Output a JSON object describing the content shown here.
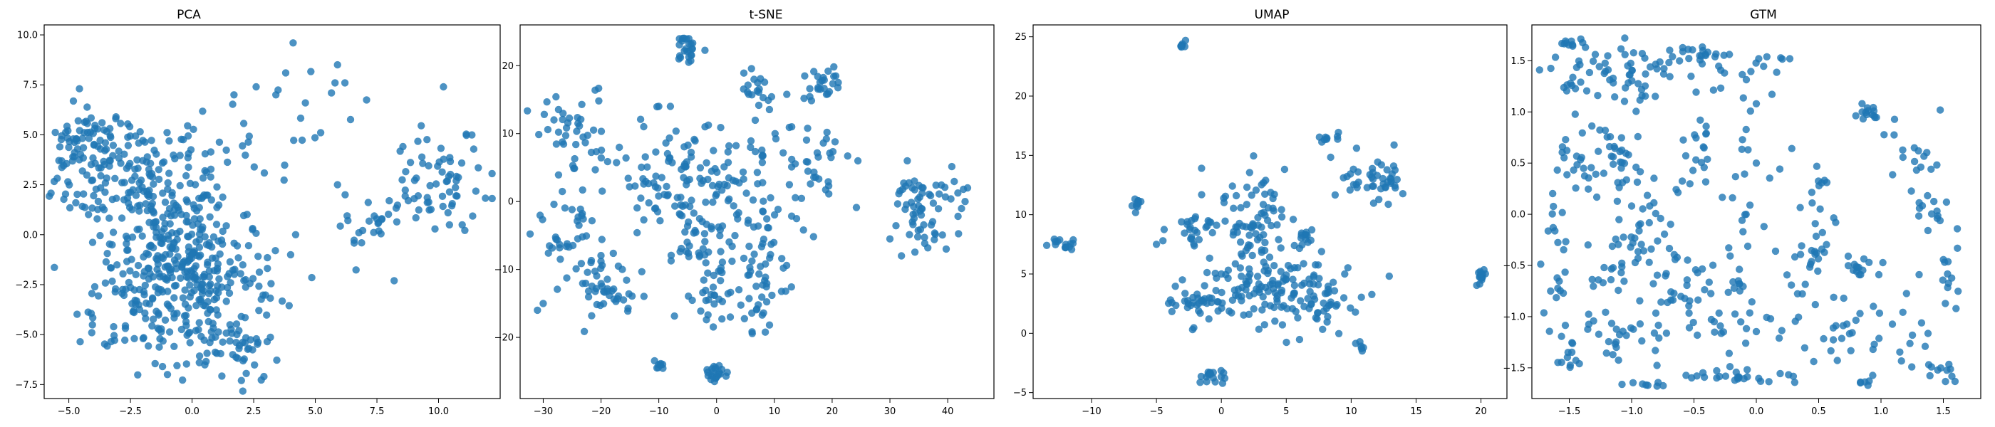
{
  "chart_data": [
    {
      "type": "scatter",
      "title": "PCA",
      "xlim": [
        -6.0,
        12.5
      ],
      "ylim": [
        -8.2,
        10.5
      ],
      "xticks": [
        -5.0,
        -2.5,
        0.0,
        2.5,
        5.0,
        7.5,
        10.0
      ],
      "xtick_labels": [
        "−5.0",
        "−2.5",
        "0.0",
        "2.5",
        "5.0",
        "7.5",
        "10.0"
      ],
      "yticks": [
        -7.5,
        -5.0,
        -2.5,
        0.0,
        2.5,
        5.0,
        7.5,
        10.0
      ],
      "ytick_labels": [
        "−7.5",
        "−5.0",
        "−2.5",
        "0.0",
        "2.5",
        "5.0",
        "7.5",
        "10.0"
      ],
      "color": "#1f77b4",
      "clusters": [
        {
          "x": -3.0,
          "y": 3.0,
          "sx": 1.4,
          "sy": 1.5,
          "n": 160
        },
        {
          "x": -4.5,
          "y": 4.8,
          "sx": 0.6,
          "sy": 0.8,
          "n": 40
        },
        {
          "x": -0.5,
          "y": -1.0,
          "sx": 1.2,
          "sy": 1.6,
          "n": 200
        },
        {
          "x": -1.5,
          "y": -3.5,
          "sx": 1.5,
          "sy": 1.5,
          "n": 120
        },
        {
          "x": 0.5,
          "y": 2.5,
          "sx": 1.5,
          "sy": 1.8,
          "n": 60
        },
        {
          "x": 1.5,
          "y": -5.5,
          "sx": 1.0,
          "sy": 0.9,
          "n": 60
        },
        {
          "x": 2.0,
          "y": -2.5,
          "sx": 1.0,
          "sy": 1.2,
          "n": 30
        },
        {
          "x": 10.0,
          "y": 2.5,
          "sx": 1.2,
          "sy": 1.2,
          "n": 70
        },
        {
          "x": 7.2,
          "y": 0.0,
          "sx": 0.8,
          "sy": 0.8,
          "n": 22
        },
        {
          "x": 4.5,
          "y": 5.5,
          "sx": 1.5,
          "sy": 1.5,
          "n": 14
        }
      ],
      "points": [
        [
          4.1,
          9.6
        ],
        [
          3.8,
          8.1
        ],
        [
          5.9,
          8.5
        ],
        [
          5.8,
          7.6
        ],
        [
          6.2,
          7.6
        ],
        [
          2.6,
          7.4
        ],
        [
          3.4,
          7.0
        ],
        [
          10.2,
          7.4
        ],
        [
          1.7,
          7.0
        ],
        [
          -1.2,
          -6.6
        ],
        [
          -1.0,
          -7.0
        ],
        [
          2.0,
          -7.3
        ],
        [
          8.2,
          -2.3
        ],
        [
          4.0,
          -1.0
        ],
        [
          4.2,
          0.0
        ],
        [
          5.9,
          2.5
        ]
      ]
    },
    {
      "type": "scatter",
      "title": "t-SNE",
      "xlim": [
        -34,
        48
      ],
      "ylim": [
        -29,
        26
      ],
      "xticks": [
        -30,
        -20,
        -10,
        0,
        10,
        20,
        30,
        40
      ],
      "xtick_labels": [
        "−30",
        "−20",
        "−10",
        "0",
        "10",
        "20",
        "30",
        "40"
      ],
      "yticks": [
        -20,
        -10,
        0,
        10,
        20
      ],
      "ytick_labels": [
        "−20",
        "−10",
        "0",
        "10",
        "20"
      ],
      "color": "#1f77b4",
      "clusters": [
        {
          "x": -5,
          "y": 22.5,
          "sx": 1.0,
          "sy": 1.2,
          "n": 25
        },
        {
          "x": 0,
          "y": -25.5,
          "sx": 1.0,
          "sy": 0.7,
          "n": 22
        },
        {
          "x": -24,
          "y": 10,
          "sx": 4.0,
          "sy": 3.0,
          "n": 45
        },
        {
          "x": -25,
          "y": -4,
          "sx": 3.0,
          "sy": 4.0,
          "n": 40
        },
        {
          "x": -20,
          "y": -13,
          "sx": 3.5,
          "sy": 3.0,
          "n": 45
        },
        {
          "x": -8,
          "y": 4,
          "sx": 5.0,
          "sy": 3.5,
          "n": 70
        },
        {
          "x": -2,
          "y": -6,
          "sx": 4.0,
          "sy": 3.0,
          "n": 50
        },
        {
          "x": 5,
          "y": 2,
          "sx": 6.0,
          "sy": 5.0,
          "n": 80
        },
        {
          "x": -1,
          "y": -15,
          "sx": 3.0,
          "sy": 2.0,
          "n": 25
        },
        {
          "x": 8,
          "y": -10,
          "sx": 3.0,
          "sy": 3.0,
          "n": 30
        },
        {
          "x": 18,
          "y": 17.5,
          "sx": 1.5,
          "sy": 1.5,
          "n": 25
        },
        {
          "x": 18,
          "y": 5,
          "sx": 2.5,
          "sy": 3.0,
          "n": 25
        },
        {
          "x": 36,
          "y": 1,
          "sx": 3.0,
          "sy": 2.0,
          "n": 45
        },
        {
          "x": 37,
          "y": -4,
          "sx": 2.0,
          "sy": 1.5,
          "n": 20
        },
        {
          "x": 7,
          "y": 16,
          "sx": 2.0,
          "sy": 2.0,
          "n": 20
        },
        {
          "x": -10,
          "y": -24,
          "sx": 0.5,
          "sy": 0.5,
          "n": 8
        },
        {
          "x": 7,
          "y": -16,
          "sx": 2.0,
          "sy": 1.5,
          "n": 12
        }
      ],
      "points": [
        [
          43,
          0
        ],
        [
          30,
          -5.5
        ],
        [
          32,
          -8
        ],
        [
          33,
          6
        ],
        [
          -31,
          -16
        ],
        [
          -30,
          -15
        ],
        [
          -8,
          14
        ],
        [
          -10,
          14
        ],
        [
          13,
          11
        ],
        [
          -2,
          11
        ]
      ]
    },
    {
      "type": "scatter",
      "title": "UMAP",
      "xlim": [
        -14.5,
        22
      ],
      "ylim": [
        -5.5,
        26
      ],
      "xticks": [
        -10,
        -5,
        0,
        5,
        10,
        15,
        20
      ],
      "xtick_labels": [
        "−10",
        "−5",
        "0",
        "5",
        "10",
        "15",
        "20"
      ],
      "yticks": [
        -5,
        0,
        5,
        10,
        15,
        20,
        25
      ],
      "ytick_labels": [
        "−5",
        "0",
        "5",
        "10",
        "15",
        "20",
        "25"
      ],
      "color": "#1f77b4",
      "clusters": [
        {
          "x": -3,
          "y": 24.2,
          "sx": 0.15,
          "sy": 0.2,
          "n": 8
        },
        {
          "x": -12,
          "y": 7.5,
          "sx": 0.5,
          "sy": 0.3,
          "n": 15
        },
        {
          "x": -6.5,
          "y": 11,
          "sx": 0.2,
          "sy": 0.3,
          "n": 10
        },
        {
          "x": -0.5,
          "y": -3.5,
          "sx": 0.7,
          "sy": 0.3,
          "n": 18
        },
        {
          "x": 20,
          "y": 4.8,
          "sx": 0.3,
          "sy": 0.5,
          "n": 15
        },
        {
          "x": 12.5,
          "y": 13,
          "sx": 0.8,
          "sy": 1.0,
          "n": 35
        },
        {
          "x": 10.5,
          "y": 12.5,
          "sx": 0.6,
          "sy": 0.6,
          "n": 10
        },
        {
          "x": 8.3,
          "y": 16.2,
          "sx": 0.5,
          "sy": 0.5,
          "n": 10
        },
        {
          "x": 3.5,
          "y": 4,
          "sx": 3.0,
          "sy": 2.0,
          "n": 150
        },
        {
          "x": 2.5,
          "y": 10,
          "sx": 1.5,
          "sy": 2.0,
          "n": 60
        },
        {
          "x": -2,
          "y": 2.5,
          "sx": 1.0,
          "sy": 0.5,
          "n": 25
        },
        {
          "x": -2,
          "y": 9,
          "sx": 1.0,
          "sy": 1.0,
          "n": 25
        },
        {
          "x": 8,
          "y": 2.5,
          "sx": 1.0,
          "sy": 1.0,
          "n": 25
        },
        {
          "x": 10.8,
          "y": -1,
          "sx": 0.2,
          "sy": 0.2,
          "n": 6
        },
        {
          "x": 6.5,
          "y": 8,
          "sx": 0.5,
          "sy": 0.5,
          "n": 10
        }
      ],
      "points": [
        [
          -4.5,
          7.8
        ],
        [
          -5,
          7.5
        ],
        [
          0,
          5
        ],
        [
          -3,
          4.5
        ],
        [
          9.5,
          5
        ]
      ]
    },
    {
      "type": "scatter",
      "title": "GTM",
      "xlim": [
        -1.8,
        1.8
      ],
      "ylim": [
        -1.8,
        1.85
      ],
      "xticks": [
        -1.5,
        -1.0,
        -0.5,
        0.0,
        0.5,
        1.0,
        1.5
      ],
      "xtick_labels": [
        "−1.5",
        "−1.0",
        "−0.5",
        "0.0",
        "0.5",
        "1.0",
        "1.5"
      ],
      "yticks": [
        -1.5,
        -1.0,
        -0.5,
        0.0,
        0.5,
        1.0,
        1.5
      ],
      "ytick_labels": [
        "−1.5",
        "−1.0",
        "−0.5",
        "0.0",
        "0.5",
        "1.0",
        "1.5"
      ],
      "color": "#1f77b4",
      "clusters": [
        {
          "x": -1.5,
          "y": 1.68,
          "sx": 0.05,
          "sy": 0.02,
          "n": 10
        },
        {
          "x": -1.55,
          "y": 1.25,
          "sx": 0.04,
          "sy": 0.03,
          "n": 6
        },
        {
          "x": -1.3,
          "y": 1.4,
          "sx": 0.2,
          "sy": 0.1,
          "n": 25
        },
        {
          "x": -0.8,
          "y": 1.5,
          "sx": 0.2,
          "sy": 0.1,
          "n": 25
        },
        {
          "x": -0.4,
          "y": 1.55,
          "sx": 0.1,
          "sy": 0.05,
          "n": 15
        },
        {
          "x": -0.2,
          "y": 1.3,
          "sx": 0.15,
          "sy": 0.1,
          "n": 10
        },
        {
          "x": -1.0,
          "y": 1.2,
          "sx": 0.15,
          "sy": 0.1,
          "n": 15
        },
        {
          "x": 0.15,
          "y": 1.5,
          "sx": 0.08,
          "sy": 0.05,
          "n": 8
        },
        {
          "x": -1.2,
          "y": 0.6,
          "sx": 0.12,
          "sy": 0.2,
          "n": 30
        },
        {
          "x": -1.5,
          "y": 0.5,
          "sx": 0.1,
          "sy": 0.3,
          "n": 15
        },
        {
          "x": -0.85,
          "y": 0.2,
          "sx": 0.2,
          "sy": 0.15,
          "n": 20
        },
        {
          "x": -0.45,
          "y": 0.55,
          "sx": 0.15,
          "sy": 0.2,
          "n": 20
        },
        {
          "x": -0.1,
          "y": 0.3,
          "sx": 0.1,
          "sy": 0.3,
          "n": 12
        },
        {
          "x": 0.35,
          "y": 0.2,
          "sx": 0.15,
          "sy": 0.3,
          "n": 15
        },
        {
          "x": 0.9,
          "y": 0.95,
          "sx": 0.07,
          "sy": 0.08,
          "n": 15
        },
        {
          "x": 1.3,
          "y": 0.6,
          "sx": 0.12,
          "sy": 0.2,
          "n": 15
        },
        {
          "x": 1.4,
          "y": 0.0,
          "sx": 0.1,
          "sy": 0.15,
          "n": 15
        },
        {
          "x": -1.6,
          "y": -0.6,
          "sx": 0.05,
          "sy": 0.4,
          "n": 25
        },
        {
          "x": -1.2,
          "y": -0.6,
          "sx": 0.1,
          "sy": 0.1,
          "n": 12
        },
        {
          "x": -0.9,
          "y": -0.3,
          "sx": 0.15,
          "sy": 0.15,
          "n": 25
        },
        {
          "x": -0.4,
          "y": -0.6,
          "sx": 0.2,
          "sy": 0.15,
          "n": 25
        },
        {
          "x": 0.3,
          "y": -0.4,
          "sx": 0.2,
          "sy": 0.15,
          "n": 25
        },
        {
          "x": 0.8,
          "y": -0.5,
          "sx": 0.1,
          "sy": 0.05,
          "n": 15
        },
        {
          "x": 1.5,
          "y": -0.6,
          "sx": 0.1,
          "sy": 0.1,
          "n": 12
        },
        {
          "x": -1.2,
          "y": -1.1,
          "sx": 0.2,
          "sy": 0.15,
          "n": 20
        },
        {
          "x": -0.7,
          "y": -1.1,
          "sx": 0.2,
          "sy": 0.2,
          "n": 20
        },
        {
          "x": -0.2,
          "y": -1.0,
          "sx": 0.2,
          "sy": 0.15,
          "n": 25
        },
        {
          "x": 0.6,
          "y": -1.1,
          "sx": 0.25,
          "sy": 0.2,
          "n": 30
        },
        {
          "x": -0.1,
          "y": -1.58,
          "sx": 0.2,
          "sy": 0.03,
          "n": 25
        },
        {
          "x": -0.85,
          "y": -1.65,
          "sx": 0.08,
          "sy": 0.02,
          "n": 8
        },
        {
          "x": 1.3,
          "y": -1.3,
          "sx": 0.2,
          "sy": 0.15,
          "n": 15
        },
        {
          "x": 1.5,
          "y": -1.55,
          "sx": 0.05,
          "sy": 0.04,
          "n": 6
        },
        {
          "x": 0.92,
          "y": -1.6,
          "sx": 0.05,
          "sy": 0.04,
          "n": 6
        },
        {
          "x": -1.5,
          "y": -1.45,
          "sx": 0.06,
          "sy": 0.06,
          "n": 8
        }
      ],
      "points": [
        [
          0.0,
          1.08
        ],
        [
          -0.45,
          0.92
        ],
        [
          0.0,
          0.5
        ],
        [
          -1.35,
          -0.3
        ]
      ]
    }
  ]
}
